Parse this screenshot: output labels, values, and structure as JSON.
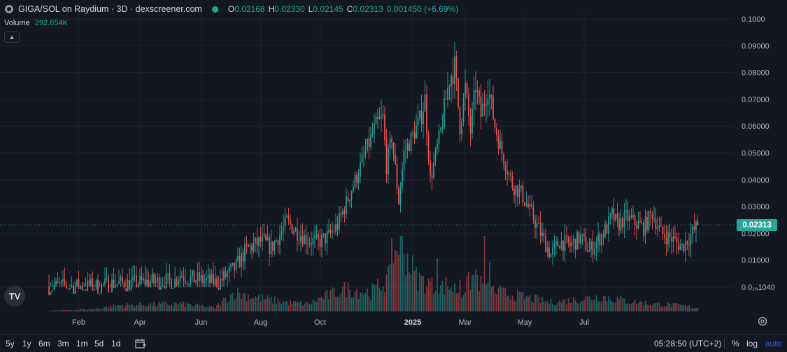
{
  "header": {
    "title": "GIGA/SOL on Raydium · 3D · dexscreener.com",
    "ohlc": [
      {
        "k": "O",
        "v": "0.02168"
      },
      {
        "k": "H",
        "v": "0.02330"
      },
      {
        "k": "L",
        "v": "0.02145"
      },
      {
        "k": "C",
        "v": "0.02313"
      }
    ],
    "change": "0.001450 (+6.69%)"
  },
  "volume": {
    "label": "Volume",
    "value": "292.654K"
  },
  "current_price": "0.02313",
  "bottom_bar": {
    "timeframes": [
      "5y",
      "1y",
      "6m",
      "3m",
      "1m",
      "5d",
      "1d"
    ],
    "clock": "05:28:50 (UTC+2)",
    "percent_label": "%",
    "log_label": "log",
    "auto_label": "auto"
  },
  "colors": {
    "up": "#26a69a",
    "down": "#ef5350",
    "background": "#131722",
    "grid": "#1f2330",
    "accent": "#2962ff"
  },
  "icons": [
    "tradingview-logo-icon",
    "calendar-range-icon",
    "settings-icon",
    "chevron-up-icon",
    "status-dot-icon"
  ],
  "chart_data": {
    "type": "candlestick",
    "ylim": [
      0.0,
      0.1
    ],
    "y_tick_labels": [
      "0.1000",
      "0.09000",
      "0.08000",
      "0.07000",
      "0.06000",
      "0.05000",
      "0.04000",
      "0.03000",
      "0.02000",
      "0.01000",
      "0.0₁₆1040"
    ],
    "y_tick_values": [
      0.1,
      0.09,
      0.08,
      0.07,
      0.06,
      0.05,
      0.04,
      0.03,
      0.02,
      0.01,
      0.0
    ],
    "x_tick_labels": [
      "Feb",
      "Apr",
      "Jun",
      "Aug",
      "Oct",
      "2025",
      "Mar",
      "May",
      "Jul"
    ],
    "x_tick_index": [
      17,
      52,
      87,
      121,
      155,
      208,
      238,
      272,
      306
    ],
    "ohlc_keypoints": [
      [
        0,
        0.0001
      ],
      [
        30,
        0.0002
      ],
      [
        34,
        0.0012
      ],
      [
        45,
        0.0012
      ],
      [
        55,
        0.0018
      ],
      [
        72,
        0.0022
      ],
      [
        75,
        0.0045
      ],
      [
        80,
        0.0032
      ],
      [
        97,
        0.0015
      ],
      [
        100,
        0.0035
      ],
      [
        107,
        0.0075
      ],
      [
        113,
        0.014
      ],
      [
        122,
        0.0172
      ],
      [
        127,
        0.0145
      ],
      [
        132,
        0.0195
      ],
      [
        136,
        0.0245
      ],
      [
        141,
        0.021
      ],
      [
        147,
        0.018
      ],
      [
        154,
        0.0165
      ],
      [
        160,
        0.019
      ],
      [
        165,
        0.023
      ],
      [
        171,
        0.033
      ],
      [
        177,
        0.043
      ],
      [
        182,
        0.052
      ],
      [
        187,
        0.06
      ],
      [
        191,
        0.063
      ],
      [
        193,
        0.045
      ],
      [
        196,
        0.056
      ],
      [
        200,
        0.032
      ],
      [
        203,
        0.05
      ],
      [
        207,
        0.055
      ],
      [
        212,
        0.062
      ],
      [
        215,
        0.07
      ],
      [
        218,
        0.04
      ],
      [
        224,
        0.058
      ],
      [
        229,
        0.078
      ],
      [
        232,
        0.082
      ],
      [
        235,
        0.06
      ],
      [
        238,
        0.074
      ],
      [
        241,
        0.058
      ],
      [
        244,
        0.075
      ],
      [
        247,
        0.064
      ],
      [
        251,
        0.075
      ],
      [
        255,
        0.06
      ],
      [
        259,
        0.05
      ],
      [
        265,
        0.038
      ],
      [
        270,
        0.035
      ],
      [
        276,
        0.027
      ],
      [
        281,
        0.02
      ],
      [
        287,
        0.012
      ],
      [
        292,
        0.017
      ],
      [
        298,
        0.0155
      ],
      [
        304,
        0.0185
      ],
      [
        309,
        0.0135
      ],
      [
        314,
        0.0175
      ],
      [
        319,
        0.022
      ],
      [
        322,
        0.027
      ],
      [
        325,
        0.023
      ],
      [
        330,
        0.026
      ],
      [
        335,
        0.024
      ],
      [
        340,
        0.022
      ],
      [
        345,
        0.0275
      ],
      [
        350,
        0.02
      ],
      [
        356,
        0.018
      ],
      [
        362,
        0.015
      ],
      [
        366,
        0.0185
      ],
      [
        371,
        0.0231
      ]
    ],
    "volume_keypoints": [
      [
        0,
        0.01
      ],
      [
        25,
        0.03
      ],
      [
        40,
        0.08
      ],
      [
        75,
        0.1
      ],
      [
        95,
        0.05
      ],
      [
        106,
        0.25
      ],
      [
        120,
        0.18
      ],
      [
        135,
        0.12
      ],
      [
        148,
        0.1
      ],
      [
        158,
        0.2
      ],
      [
        170,
        0.3
      ],
      [
        184,
        0.25
      ],
      [
        195,
        0.45
      ],
      [
        200,
        0.98
      ],
      [
        210,
        0.45
      ],
      [
        222,
        0.3
      ],
      [
        228,
        0.35
      ],
      [
        236,
        0.25
      ],
      [
        244,
        0.5
      ],
      [
        248,
        0.3
      ],
      [
        258,
        0.25
      ],
      [
        270,
        0.2
      ],
      [
        286,
        0.12
      ],
      [
        300,
        0.15
      ],
      [
        315,
        0.2
      ],
      [
        330,
        0.14
      ],
      [
        345,
        0.1
      ],
      [
        360,
        0.08
      ],
      [
        371,
        0.05
      ]
    ],
    "volume_spikes": [
      [
        196,
        0.97
      ],
      [
        222,
        0.7
      ],
      [
        249,
        1.0
      ],
      [
        252,
        0.65
      ],
      [
        235,
        0.42
      ],
      [
        218,
        0.4
      ]
    ]
  }
}
